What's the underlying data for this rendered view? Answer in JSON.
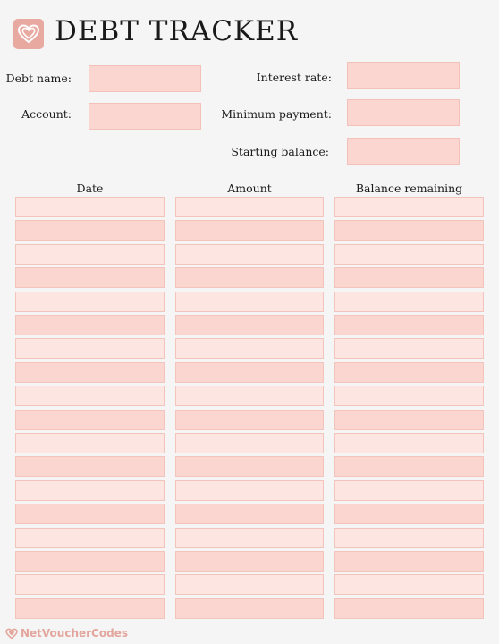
{
  "header": {
    "title": "DEBT TRACKER",
    "logo_icon": "heart-icon"
  },
  "form": {
    "debt_name_label": "Debt name:",
    "account_label": "Account:",
    "interest_rate_label": "Interest rate:",
    "minimum_payment_label": "Minimum  payment:",
    "starting_balance_label": "Starting balance:",
    "debt_name_value": "",
    "account_value": "",
    "interest_rate_value": "",
    "minimum_payment_value": "",
    "starting_balance_value": ""
  },
  "table": {
    "columns": [
      "Date",
      "Amount",
      "Balance remaining"
    ],
    "rows": [
      [
        "",
        "",
        ""
      ],
      [
        "",
        "",
        ""
      ],
      [
        "",
        "",
        ""
      ],
      [
        "",
        "",
        ""
      ],
      [
        "",
        "",
        ""
      ],
      [
        "",
        "",
        ""
      ],
      [
        "",
        "",
        ""
      ],
      [
        "",
        "",
        ""
      ],
      [
        "",
        "",
        ""
      ],
      [
        "",
        "",
        ""
      ],
      [
        "",
        "",
        ""
      ],
      [
        "",
        "",
        ""
      ],
      [
        "",
        "",
        ""
      ],
      [
        "",
        "",
        ""
      ],
      [
        "",
        "",
        ""
      ],
      [
        "",
        "",
        ""
      ],
      [
        "",
        "",
        ""
      ],
      [
        "",
        "",
        ""
      ]
    ]
  },
  "footer": {
    "brand": "NetVoucherCodes",
    "brand_icon": "heart-icon"
  },
  "colors": {
    "background": "#f6f5f5",
    "accent": "#e8a9a0",
    "field_fill": "#fbd6d0",
    "row_light": "#fde6e1",
    "row_dark": "#fbd5cf"
  }
}
